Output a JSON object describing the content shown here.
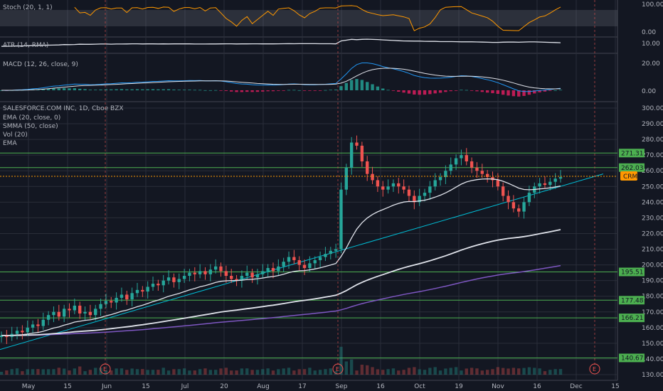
{
  "chart_data": {
    "type": "candlestick",
    "symbol_title": "SALESFORCE.COM INC, 1D, Cboe BZX",
    "ticker_tag": "CRM",
    "indicator_labels": [
      "EMA (20, close, 0)",
      "SMMA (50, close)",
      "Vol (20)",
      "EMA"
    ],
    "x_tick_labels": [
      "May",
      "15",
      "Jun",
      "15",
      "Jul",
      "20",
      "Aug",
      "17",
      "Sep",
      "16",
      "Oct",
      "19",
      "Nov",
      "16",
      "Dec",
      "15"
    ],
    "y_ticks": [
      "300.00",
      "290.00",
      "280.00",
      "270.00",
      "260.00",
      "250.00",
      "240.00",
      "230.00",
      "220.00",
      "210.00",
      "200.00",
      "190.00",
      "180.00",
      "170.00",
      "160.00",
      "150.00",
      "140.00",
      "130.00"
    ],
    "ylim": [
      130,
      300
    ],
    "price_levels": [
      "271.31",
      "262.03",
      "195.51",
      "177.48",
      "166.21",
      "140.67"
    ],
    "last_price": 256.5,
    "earnings_markers": [
      "E",
      "E",
      "E"
    ],
    "close_series": [
      155,
      154,
      156,
      158,
      157,
      160,
      162,
      161,
      165,
      168,
      170,
      167,
      172,
      171,
      174,
      169,
      170,
      168,
      172,
      175,
      177,
      176,
      179,
      181,
      178,
      182,
      184,
      183,
      186,
      188,
      187,
      190,
      192,
      189,
      191,
      193,
      195,
      194,
      196,
      194,
      197,
      199,
      196,
      193,
      191,
      190,
      193,
      195,
      192,
      194,
      196,
      198,
      196,
      199,
      202,
      205,
      203,
      200,
      198,
      201,
      203,
      205,
      207,
      209,
      210,
      248,
      262,
      278,
      276,
      266,
      258,
      254,
      250,
      248,
      250,
      252,
      250,
      248,
      244,
      240,
      244,
      246,
      250,
      254,
      256,
      260,
      264,
      268,
      270,
      266,
      262,
      260,
      258,
      256,
      254,
      250,
      244,
      240,
      236,
      234,
      240,
      246,
      250,
      252,
      251,
      253,
      255,
      256
    ],
    "panels": {
      "stoch": {
        "label": "Stoch (20, 1, 1)",
        "ticks": [
          "100.00",
          "0.00"
        ]
      },
      "atr": {
        "label": "ATR (14, RMA)",
        "ticks": [
          "10.00"
        ]
      },
      "macd": {
        "label": "MACD (12, 26, close, 9)",
        "ticks": [
          "20.00",
          "0.00"
        ]
      }
    }
  },
  "colors": {
    "background": "#131722",
    "grid": "#2a2e39",
    "up": "#26a69a",
    "down": "#ef5350",
    "ema": "#e0e3eb",
    "smma": "#e0e3eb",
    "long_ma": "#7e57c2",
    "trendline": "#00bcd4",
    "level": "#4caf50",
    "last_price": "#ff9800",
    "stoch": "#ff9800",
    "macd_line": "#2196f3",
    "signal_line": "#e0e3eb"
  }
}
